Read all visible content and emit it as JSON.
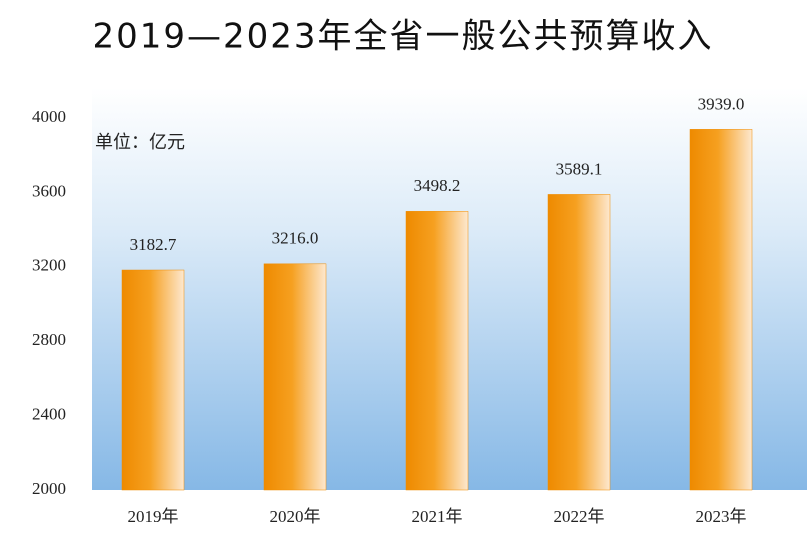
{
  "chart_data": {
    "type": "bar",
    "title": "2019—2023年全省一般公共预算收入",
    "unit_label": "单位：亿元",
    "categories": [
      "2019年",
      "2020年",
      "2021年",
      "2022年",
      "2023年"
    ],
    "values": [
      3182.7,
      3216.0,
      3498.2,
      3589.1,
      3939.0
    ],
    "value_labels": [
      "3182.7",
      "3216.0",
      "3498.2",
      "3589.1",
      "3939.0"
    ],
    "color": "#f08c00",
    "ylim": [
      2000,
      4000
    ],
    "yticks": [
      2000,
      2400,
      2800,
      3200,
      3600,
      4000
    ],
    "grid": false
  }
}
